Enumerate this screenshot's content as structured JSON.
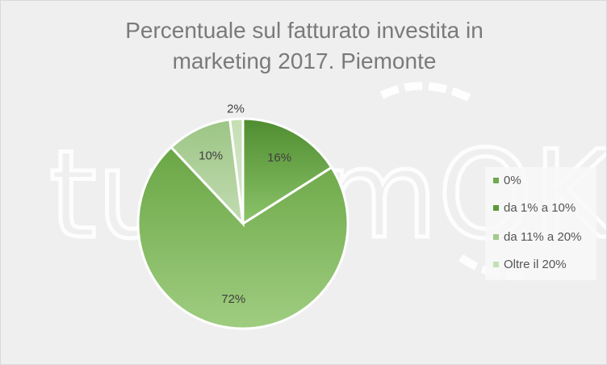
{
  "watermark": "turismOK",
  "chart_data": {
    "type": "pie",
    "title": "Percentuale sul fatturato investita in marketing 2017. Piemonte",
    "title_lines": [
      "Percentuale sul fatturato investita in",
      "marketing 2017. Piemonte"
    ],
    "legend_position": "right",
    "slices": [
      {
        "label": "Oltre il 20%",
        "value": 2,
        "data_label": "2%",
        "color": "#c5dfb4"
      },
      {
        "label": "da 1% a 10%",
        "value": 16,
        "data_label": "16%",
        "color": "#5a9a3a"
      },
      {
        "label": "0%",
        "value": 72,
        "data_label": "72%",
        "color": "#6ea94c"
      },
      {
        "label": "da 11% a 20%",
        "value": 10,
        "data_label": "10%",
        "color": "#a4c98c"
      }
    ],
    "legend": [
      {
        "label": "0%",
        "color": "#6ea94c"
      },
      {
        "label": "da 1% a 10%",
        "color": "#5a9a3a"
      },
      {
        "label": "da 11% a 20%",
        "color": "#a4c98c"
      },
      {
        "label": "Oltre il 20%",
        "color": "#c5dfb4"
      }
    ]
  }
}
